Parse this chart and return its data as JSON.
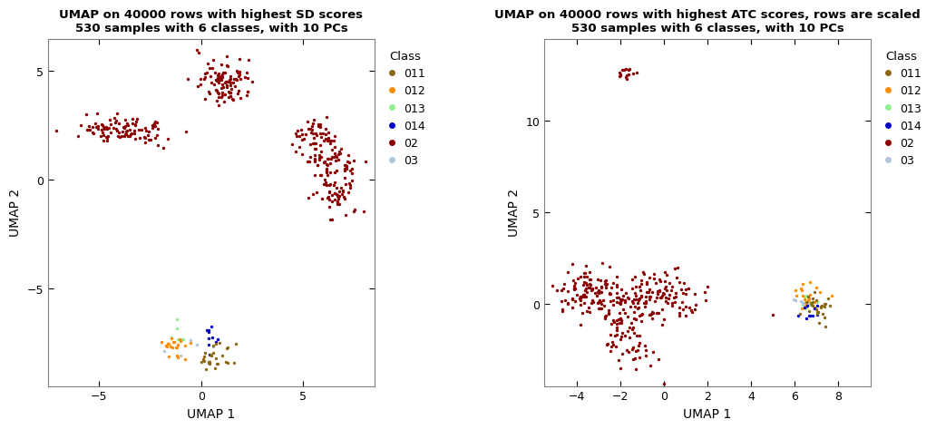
{
  "plot1_title": "UMAP on 40000 rows with highest SD scores\n530 samples with 6 classes, with 10 PCs",
  "plot2_title": "UMAP on 40000 rows with highest ATC scores, rows are scaled\n530 samples with 6 classes, with 10 PCs",
  "xlabel": "UMAP 1",
  "ylabel": "UMAP 2",
  "classes": [
    "011",
    "012",
    "013",
    "014",
    "02",
    "03"
  ],
  "colors": {
    "011": "#8B6914",
    "012": "#FF8C00",
    "013": "#90EE90",
    "014": "#0000CD",
    "02": "#8B0000",
    "03": "#B0C4DE"
  },
  "legend_title": "Class",
  "plot1_xlim": [
    -7.5,
    8.5
  ],
  "plot1_ylim": [
    -9.5,
    6.5
  ],
  "plot1_xticks": [
    -5,
    0,
    5
  ],
  "plot1_yticks": [
    -5,
    0,
    5
  ],
  "plot2_xlim": [
    -5.5,
    9.5
  ],
  "plot2_ylim": [
    -4.5,
    14.5
  ],
  "plot2_xticks": [
    -4,
    -2,
    0,
    2,
    4,
    6,
    8
  ],
  "plot2_yticks": [
    0,
    5,
    10
  ],
  "marker_size": 6,
  "seed": 42
}
